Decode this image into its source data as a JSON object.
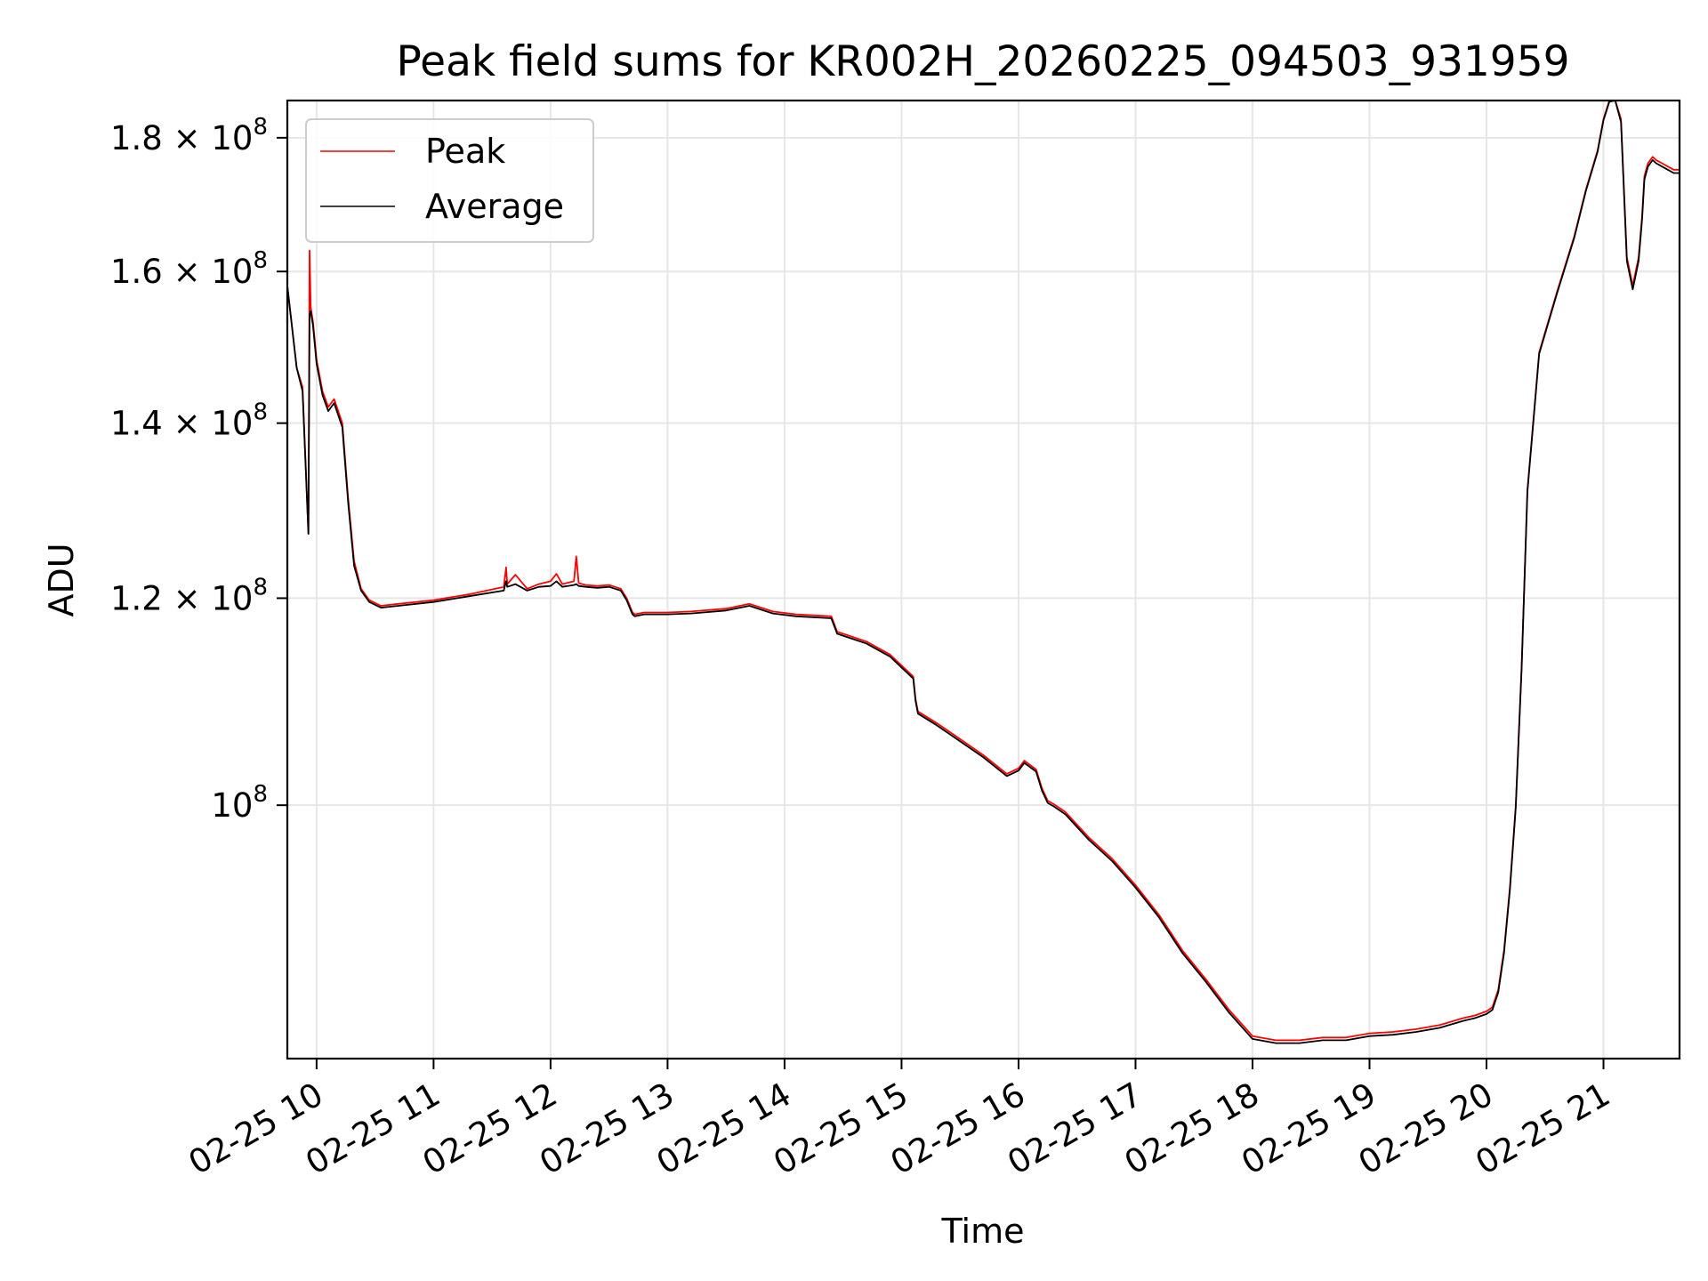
{
  "chart_data": {
    "type": "line",
    "title": "Peak field sums for KR002H_20260225_094503_931959",
    "xlabel": "Time",
    "ylabel": "ADU",
    "y_scale": "log",
    "ylim": [
      80000000,
      186000000
    ],
    "xlim": [
      9.75,
      21.65
    ],
    "x_unit": "hour of day (02-25)",
    "grid": true,
    "legend_position": "upper left",
    "x_ticks": [
      {
        "value": 10,
        "label": "02-25 10"
      },
      {
        "value": 11,
        "label": "02-25 11"
      },
      {
        "value": 12,
        "label": "02-25 12"
      },
      {
        "value": 13,
        "label": "02-25 13"
      },
      {
        "value": 14,
        "label": "02-25 14"
      },
      {
        "value": 15,
        "label": "02-25 15"
      },
      {
        "value": 16,
        "label": "02-25 16"
      },
      {
        "value": 17,
        "label": "02-25 17"
      },
      {
        "value": 18,
        "label": "02-25 18"
      },
      {
        "value": 19,
        "label": "02-25 19"
      },
      {
        "value": 20,
        "label": "02-25 20"
      },
      {
        "value": 21,
        "label": "02-25 21"
      }
    ],
    "y_ticks": [
      {
        "value": 100000000,
        "mantissa": "",
        "exponent": "8"
      },
      {
        "value": 120000000,
        "mantissa": "1.2",
        "exponent": "8"
      },
      {
        "value": 140000000,
        "mantissa": "1.4",
        "exponent": "8"
      },
      {
        "value": 160000000,
        "mantissa": "1.6",
        "exponent": "8"
      },
      {
        "value": 180000000,
        "mantissa": "1.8",
        "exponent": "8"
      }
    ],
    "y_tick_base": "10",
    "y_tick_times": "×",
    "series": [
      {
        "name": "Peak",
        "color": "#ff0000",
        "x": [
          9.75,
          9.83,
          9.88,
          9.93,
          9.94,
          9.95,
          9.97,
          10.0,
          10.05,
          10.1,
          10.15,
          10.22,
          10.27,
          10.32,
          10.38,
          10.45,
          10.55,
          10.7,
          11.0,
          11.3,
          11.6,
          11.62,
          11.63,
          11.7,
          11.8,
          11.9,
          12.0,
          12.05,
          12.1,
          12.2,
          12.22,
          12.24,
          12.3,
          12.4,
          12.5,
          12.55,
          12.6,
          12.65,
          12.7,
          12.72,
          12.8,
          13.0,
          13.2,
          13.5,
          13.7,
          13.9,
          14.1,
          14.4,
          14.45,
          14.5,
          14.7,
          14.9,
          15.1,
          15.12,
          15.14,
          15.3,
          15.5,
          15.7,
          15.9,
          16.0,
          16.05,
          16.15,
          16.2,
          16.25,
          16.3,
          16.4,
          16.6,
          16.8,
          17.0,
          17.2,
          17.4,
          17.6,
          17.8,
          18.0,
          18.2,
          18.4,
          18.6,
          18.8,
          19.0,
          19.2,
          19.4,
          19.6,
          19.8,
          19.9,
          20.0,
          20.05,
          20.1,
          20.15,
          20.2,
          20.25,
          20.3,
          20.35,
          20.45,
          20.6,
          20.75,
          20.85,
          20.95,
          21.0,
          21.05,
          21.1,
          21.15,
          21.2,
          21.25,
          21.3,
          21.33,
          21.35,
          21.38,
          21.42,
          21.45,
          21.5,
          21.55,
          21.6,
          21.62,
          21.65
        ],
        "values": [
          158000000,
          147000000,
          144500000,
          127000000,
          163000000,
          155000000,
          153000000,
          148000000,
          144000000,
          142000000,
          143000000,
          140000000,
          131000000,
          124000000,
          121000000,
          119800000,
          119200000,
          119400000,
          119800000,
          120400000,
          121200000,
          123300000,
          121500000,
          122500000,
          121000000,
          121500000,
          121800000,
          122600000,
          121500000,
          121800000,
          124500000,
          121600000,
          121400000,
          121300000,
          121400000,
          121200000,
          121000000,
          120000000,
          118500000,
          118300000,
          118500000,
          118500000,
          118600000,
          118900000,
          119400000,
          118600000,
          118300000,
          118100000,
          116500000,
          116300000,
          115500000,
          114200000,
          112000000,
          109800000,
          108600000,
          107500000,
          106000000,
          104500000,
          102800000,
          103300000,
          104000000,
          103200000,
          101500000,
          100400000,
          100100000,
          99400000,
          97200000,
          95400000,
          93200000,
          90800000,
          88000000,
          85800000,
          83500000,
          81600000,
          81300000,
          81300000,
          81500000,
          81500000,
          81800000,
          81900000,
          82100000,
          82400000,
          82900000,
          83100000,
          83400000,
          83700000,
          85000000,
          88000000,
          93000000,
          100000000,
          113000000,
          132000000,
          149000000,
          157000000,
          165000000,
          172000000,
          178000000,
          183000000,
          186000000,
          187000000,
          183000000,
          162000000,
          158000000,
          162000000,
          168000000,
          174000000,
          176000000,
          177000000,
          176500000,
          176000000,
          175500000,
          175000000,
          175000000,
          175000000
        ]
      },
      {
        "name": "Average",
        "color": "#000000",
        "x": [
          9.75,
          9.83,
          9.88,
          9.93,
          9.94,
          9.95,
          9.97,
          10.0,
          10.05,
          10.1,
          10.15,
          10.22,
          10.27,
          10.32,
          10.38,
          10.45,
          10.55,
          10.7,
          11.0,
          11.3,
          11.6,
          11.62,
          11.63,
          11.7,
          11.8,
          11.9,
          12.0,
          12.05,
          12.1,
          12.2,
          12.22,
          12.24,
          12.3,
          12.4,
          12.5,
          12.55,
          12.6,
          12.65,
          12.7,
          12.72,
          12.8,
          13.0,
          13.2,
          13.5,
          13.7,
          13.9,
          14.1,
          14.4,
          14.45,
          14.5,
          14.7,
          14.9,
          15.1,
          15.12,
          15.14,
          15.3,
          15.5,
          15.7,
          15.9,
          16.0,
          16.05,
          16.15,
          16.2,
          16.25,
          16.3,
          16.4,
          16.6,
          16.8,
          17.0,
          17.2,
          17.4,
          17.6,
          17.8,
          18.0,
          18.2,
          18.4,
          18.6,
          18.8,
          19.0,
          19.2,
          19.4,
          19.6,
          19.8,
          19.9,
          20.0,
          20.05,
          20.1,
          20.15,
          20.2,
          20.25,
          20.3,
          20.35,
          20.45,
          20.6,
          20.75,
          20.85,
          20.95,
          21.0,
          21.05,
          21.1,
          21.15,
          21.2,
          21.25,
          21.3,
          21.33,
          21.35,
          21.38,
          21.42,
          21.45,
          21.5,
          21.55,
          21.6,
          21.62,
          21.65
        ],
        "values": [
          158000000,
          147000000,
          144000000,
          127000000,
          154000000,
          154500000,
          152500000,
          147500000,
          143500000,
          141500000,
          142500000,
          139500000,
          130500000,
          123500000,
          120800000,
          119600000,
          119000000,
          119200000,
          119600000,
          120200000,
          120800000,
          121800000,
          121200000,
          121500000,
          120800000,
          121200000,
          121300000,
          121800000,
          121200000,
          121400000,
          121500000,
          121300000,
          121200000,
          121100000,
          121200000,
          121000000,
          120800000,
          119800000,
          118300000,
          118100000,
          118300000,
          118300000,
          118400000,
          118700000,
          119200000,
          118400000,
          118100000,
          117900000,
          116300000,
          116100000,
          115300000,
          114000000,
          111800000,
          109600000,
          108400000,
          107300000,
          105800000,
          104300000,
          102600000,
          103100000,
          103800000,
          103000000,
          101300000,
          100200000,
          99900000,
          99200000,
          97000000,
          95200000,
          93000000,
          90600000,
          87800000,
          85600000,
          83300000,
          81400000,
          81100000,
          81100000,
          81300000,
          81300000,
          81600000,
          81700000,
          81900000,
          82200000,
          82700000,
          82900000,
          83200000,
          83500000,
          84800000,
          87800000,
          92800000,
          99800000,
          112800000,
          131800000,
          148800000,
          156800000,
          164800000,
          171800000,
          177800000,
          182800000,
          185800000,
          186500000,
          182500000,
          161500000,
          157500000,
          161500000,
          167500000,
          173500000,
          175500000,
          176500000,
          176000000,
          175500000,
          175000000,
          174500000,
          174500000,
          174500000
        ]
      }
    ]
  }
}
